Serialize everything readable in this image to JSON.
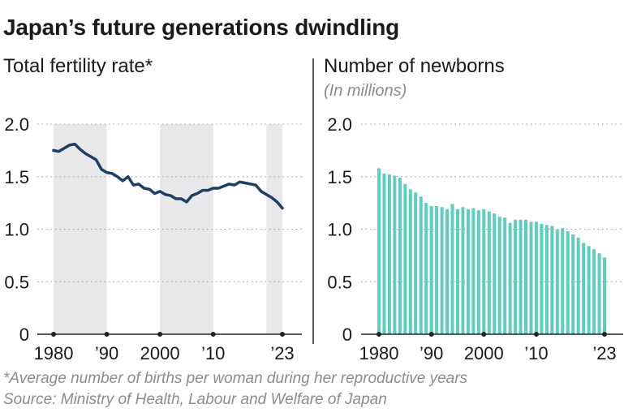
{
  "title": "Japan’s future generations dwindling",
  "footnote": "*Average number of births per woman during her reproductive years",
  "source": "Source: Ministry of Health, Labour and Welfare of Japan",
  "colors": {
    "line": "#1b3f66",
    "bars": "#5fcdbf",
    "shade": "#e8e8ea",
    "grid": "#9a9a9a",
    "axis": "#222222",
    "text": "#1a1a1a",
    "muted": "#8c8c8c"
  },
  "chart_data": [
    {
      "type": "line",
      "title": "Total fertility rate*",
      "subtitle": "",
      "ylim": [
        0,
        2.0
      ],
      "xlim": [
        1980,
        2023
      ],
      "yticks": [
        "0",
        "0.5",
        "1.0",
        "1.5",
        "2.0"
      ],
      "ytick_values": [
        0,
        0.5,
        1.0,
        1.5,
        2.0
      ],
      "xticks": [
        {
          "value": 1980,
          "label": "1980"
        },
        {
          "value": 1990,
          "label": "’90"
        },
        {
          "value": 2000,
          "label": "2000"
        },
        {
          "value": 2010,
          "label": "’10"
        },
        {
          "value": 2023,
          "label": "’23"
        }
      ],
      "shaded_periods": [
        [
          1980,
          1990
        ],
        [
          2000,
          2010
        ],
        [
          2020,
          2023
        ]
      ],
      "grid": "dotted horizontal",
      "series": [
        {
          "x": [
            1980,
            1981,
            1982,
            1983,
            1984,
            1985,
            1986,
            1987,
            1988,
            1989,
            1990,
            1991,
            1992,
            1993,
            1994,
            1995,
            1996,
            1997,
            1998,
            1999,
            2000,
            2001,
            2002,
            2003,
            2004,
            2005,
            2006,
            2007,
            2008,
            2009,
            2010,
            2011,
            2012,
            2013,
            2014,
            2015,
            2016,
            2017,
            2018,
            2019,
            2020,
            2021,
            2022,
            2023
          ],
          "values": [
            1.75,
            1.74,
            1.77,
            1.8,
            1.81,
            1.76,
            1.72,
            1.69,
            1.66,
            1.57,
            1.54,
            1.53,
            1.5,
            1.46,
            1.5,
            1.42,
            1.43,
            1.39,
            1.38,
            1.34,
            1.36,
            1.33,
            1.32,
            1.29,
            1.29,
            1.26,
            1.32,
            1.34,
            1.37,
            1.37,
            1.39,
            1.39,
            1.41,
            1.43,
            1.42,
            1.45,
            1.44,
            1.43,
            1.42,
            1.36,
            1.33,
            1.3,
            1.26,
            1.2
          ]
        }
      ]
    },
    {
      "type": "bar",
      "title": "Number of newborns",
      "subtitle": "(In millions)",
      "ylim": [
        0,
        2.0
      ],
      "xlim": [
        1980,
        2023
      ],
      "yticks": [
        "0",
        "0.5",
        "1.0",
        "1.5",
        "2.0"
      ],
      "ytick_values": [
        0,
        0.5,
        1.0,
        1.5,
        2.0
      ],
      "xticks": [
        {
          "value": 1980,
          "label": "1980"
        },
        {
          "value": 1990,
          "label": "’90"
        },
        {
          "value": 2000,
          "label": "2000"
        },
        {
          "value": 2010,
          "label": "’10"
        },
        {
          "value": 2023,
          "label": "’23"
        }
      ],
      "grid": "dotted horizontal",
      "series": [
        {
          "x": [
            1980,
            1981,
            1982,
            1983,
            1984,
            1985,
            1986,
            1987,
            1988,
            1989,
            1990,
            1991,
            1992,
            1993,
            1994,
            1995,
            1996,
            1997,
            1998,
            1999,
            2000,
            2001,
            2002,
            2003,
            2004,
            2005,
            2006,
            2007,
            2008,
            2009,
            2010,
            2011,
            2012,
            2013,
            2014,
            2015,
            2016,
            2017,
            2018,
            2019,
            2020,
            2021,
            2022,
            2023
          ],
          "values": [
            1.58,
            1.53,
            1.52,
            1.51,
            1.49,
            1.43,
            1.38,
            1.35,
            1.31,
            1.25,
            1.22,
            1.22,
            1.21,
            1.19,
            1.24,
            1.19,
            1.21,
            1.19,
            1.2,
            1.18,
            1.19,
            1.17,
            1.15,
            1.12,
            1.11,
            1.06,
            1.09,
            1.09,
            1.09,
            1.07,
            1.07,
            1.05,
            1.04,
            1.03,
            1.0,
            1.01,
            0.98,
            0.95,
            0.92,
            0.87,
            0.84,
            0.81,
            0.77,
            0.73
          ]
        }
      ]
    }
  ]
}
